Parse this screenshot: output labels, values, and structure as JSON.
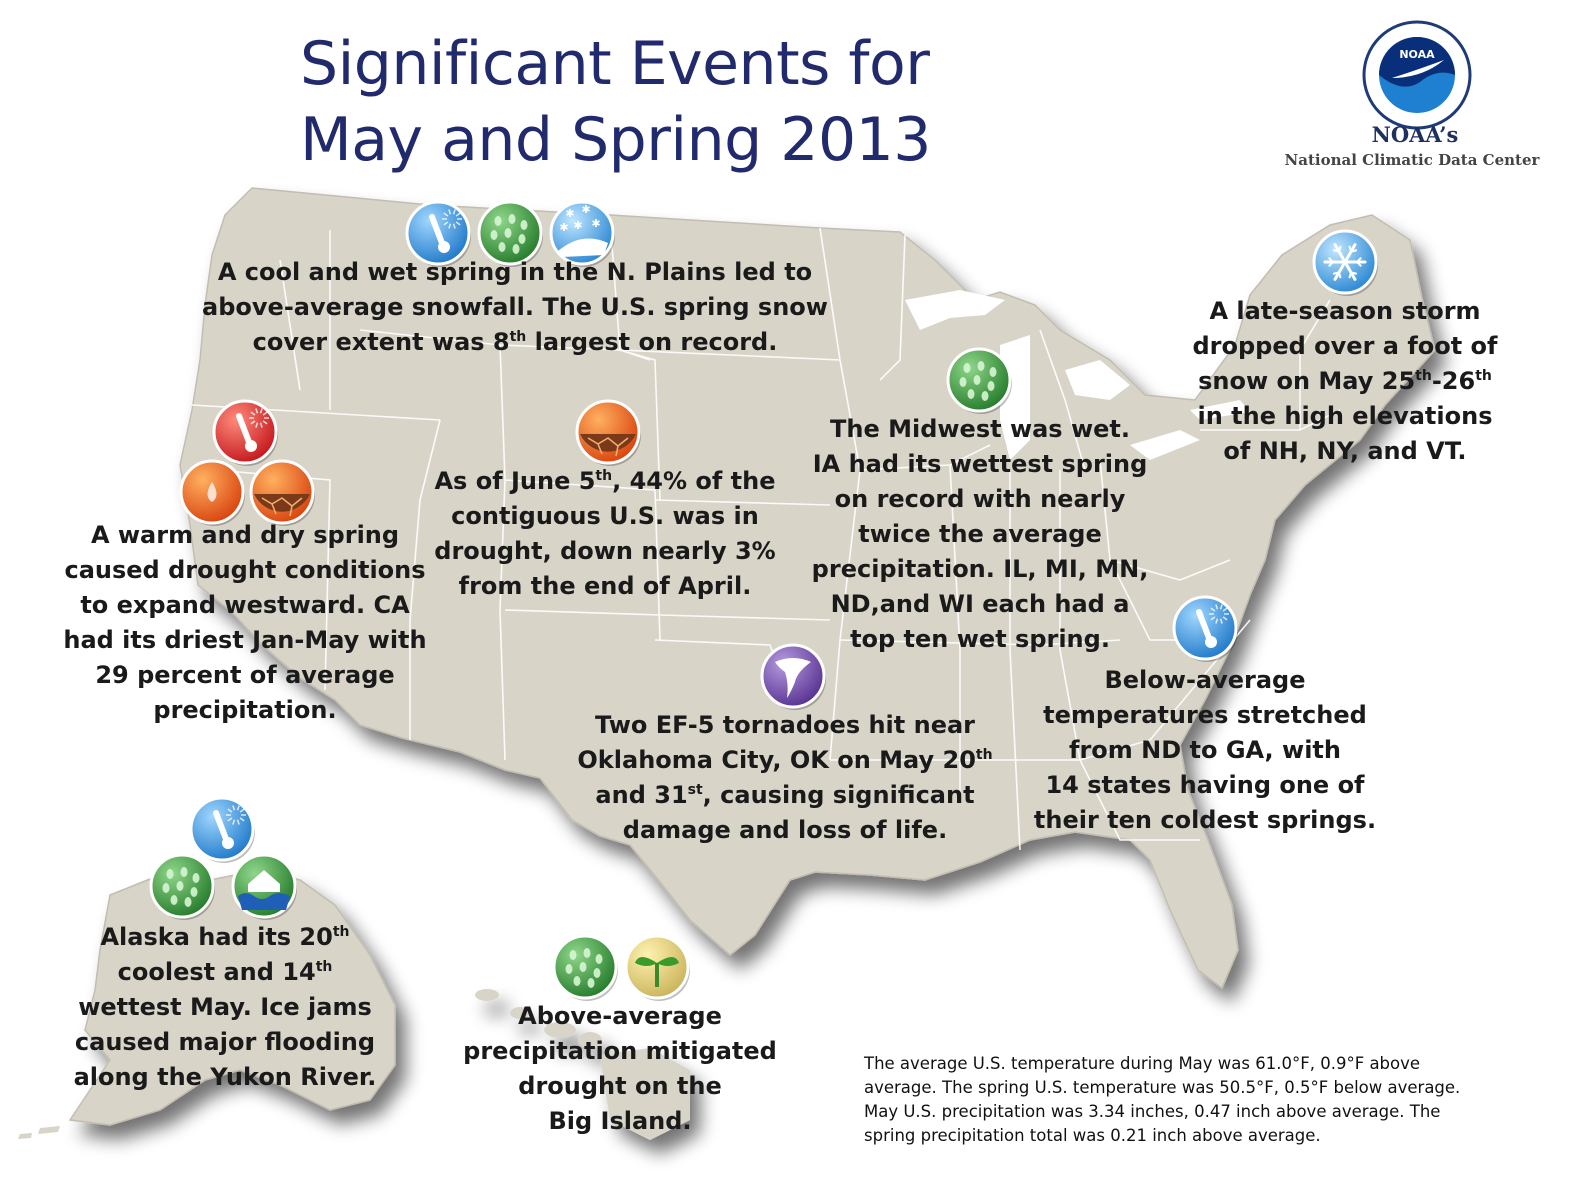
{
  "title": {
    "line1": "Significant Events for",
    "line2": "May and Spring 2013"
  },
  "logo": {
    "seal_text": "NOAA",
    "name": "NOAA’s",
    "subtitle": "National Climatic Data Center"
  },
  "colors": {
    "title": "#222a6e",
    "map_fill": "#d8d4c8",
    "state_borders": "#ffffff",
    "cold_icon": "#2b8fd6",
    "wet_icon": "#3a9a3a",
    "hot_icon": "#d8282a",
    "drought_icon": "#e8561c",
    "tornado_icon": "#6a3fa6"
  },
  "icons": {
    "north_plains": [
      "cold-thermometer-icon",
      "wet-rain-icon",
      "snow-icon"
    ],
    "west": [
      "hot-thermometer-icon",
      "dry-drop-icon",
      "drought-cracked-ground-icon"
    ],
    "central": [
      "drought-cracked-ground-icon"
    ],
    "midwest": [
      "wet-rain-icon"
    ],
    "northeast": [
      "snowflake-icon"
    ],
    "southeast": [
      "cold-thermometer-icon"
    ],
    "oklahoma": [
      "tornado-icon"
    ],
    "alaska": [
      "cold-thermometer-icon",
      "wet-rain-icon",
      "flood-icon"
    ],
    "hawaii": [
      "wet-rain-icon",
      "drought-relief-sprout-icon"
    ]
  },
  "callouts": {
    "north_plains": {
      "l1": "A cool and wet spring in the  N. Plains led to",
      "l2": "above-average snowfall. The U.S. spring snow",
      "l3a": "cover extent was 8",
      "l3sup": "th",
      "l3b": " largest on record."
    },
    "west": {
      "l1": "A warm and dry spring",
      "l2": "caused drought conditions",
      "l3": "to expand westward. CA",
      "l4": "had its driest Jan-May with",
      "l5": "29 percent of average",
      "l6": "precipitation."
    },
    "central": {
      "l1a": "As of June 5",
      "l1sup": "th",
      "l1b": ", 44% of the",
      "l2": "contiguous U.S. was in",
      "l3": "drought, down nearly 3%",
      "l4": "from the end of April."
    },
    "midwest": {
      "l1": "The Midwest was wet.",
      "l2": "IA had its wettest spring",
      "l3": "on record with nearly",
      "l4": "twice the average",
      "l5": "precipitation. IL, MI, MN,",
      "l6": "ND,and WI each had a",
      "l7": "top ten wet spring."
    },
    "northeast": {
      "l1": "A late-season storm",
      "l2": "dropped over a foot of",
      "l3a": "snow on May 25",
      "l3sup1": "th",
      "l3b": "-26",
      "l3sup2": "th",
      "l4": "in the high elevations",
      "l5": "of NH, NY, and VT."
    },
    "southeast": {
      "l1": "Below-average",
      "l2": "temperatures stretched",
      "l3": "from ND to GA, with",
      "l4": "14 states having one of",
      "l5": "their ten coldest springs."
    },
    "oklahoma": {
      "l1": "Two EF-5 tornadoes hit near",
      "l2a": "Oklahoma City, OK on May 20",
      "l2sup": "th",
      "l3a": "and 31",
      "l3sup": "st",
      "l3b": ", causing significant",
      "l4": "damage and loss of life."
    },
    "alaska": {
      "l1a": "Alaska had its 20",
      "l1sup": "th",
      "l2a": "coolest and 14",
      "l2sup": "th",
      "l3": "wettest May. Ice jams",
      "l4": "caused major flooding",
      "l5": "along the Yukon River."
    },
    "hawaii": {
      "l1": "Above-average",
      "l2": "precipitation mitigated",
      "l3": "drought on the",
      "l4": "Big Island."
    }
  },
  "summary": {
    "l1": "The average U.S. temperature during May was 61.0°F, 0.9°F above",
    "l2": "average. The spring U.S. temperature was 50.5°F, 0.5°F below average.",
    "l3": "May U.S. precipitation was 3.34 inches, 0.47 inch above average. The",
    "l4": "spring precipitation total was 0.21 inch above average."
  }
}
